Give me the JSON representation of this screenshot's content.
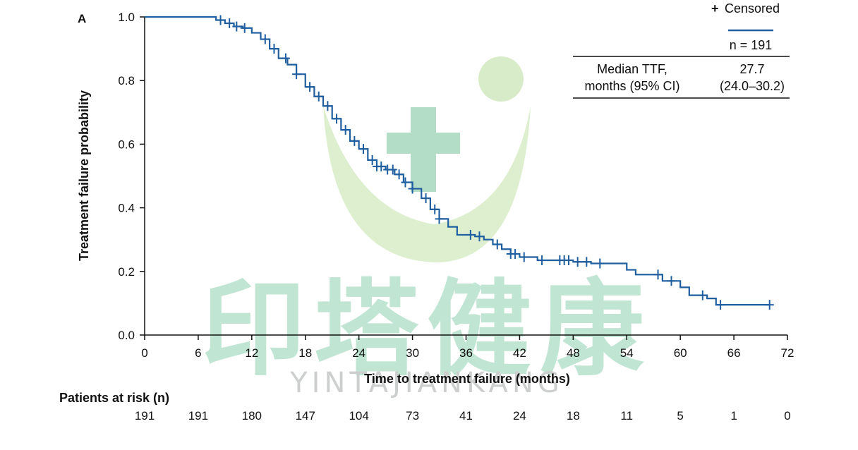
{
  "panel_label": "A",
  "chart_data": {
    "type": "line",
    "step": true,
    "xlabel": "Time to treatment failure (months)",
    "ylabel": "Treatment failure probability",
    "xlim": [
      0,
      72
    ],
    "ylim": [
      0,
      1
    ],
    "x_ticks": [
      0,
      6,
      12,
      18,
      24,
      30,
      36,
      42,
      48,
      54,
      60,
      66,
      72
    ],
    "y_ticks": [
      "0.0",
      "0.2",
      "0.4",
      "0.6",
      "0.8",
      "1.0"
    ],
    "grid": false,
    "colors": {
      "curve": "#1f5fa0",
      "watermark_green": "#b9dc9c",
      "watermark_teal": "#6fbf95"
    },
    "series": [
      {
        "x": [
          0,
          7.5,
          8,
          9,
          10,
          11,
          12,
          13,
          14,
          15,
          16,
          17,
          18,
          19,
          20,
          21,
          22,
          23,
          24,
          25,
          26,
          27,
          28,
          29,
          30,
          31,
          32,
          33,
          34,
          35,
          36,
          37,
          38,
          39,
          40,
          41,
          42,
          44,
          46,
          48,
          50,
          52,
          53,
          54,
          55,
          56,
          58,
          59,
          60,
          61,
          62,
          63,
          64,
          66,
          68,
          70
        ],
        "y": [
          1.0,
          1.0,
          0.99,
          0.98,
          0.97,
          0.965,
          0.95,
          0.93,
          0.9,
          0.87,
          0.85,
          0.82,
          0.78,
          0.75,
          0.72,
          0.68,
          0.645,
          0.61,
          0.585,
          0.55,
          0.53,
          0.52,
          0.505,
          0.48,
          0.46,
          0.43,
          0.395,
          0.365,
          0.34,
          0.315,
          0.315,
          0.31,
          0.3,
          0.285,
          0.27,
          0.255,
          0.245,
          0.235,
          0.235,
          0.23,
          0.225,
          0.225,
          0.225,
          0.205,
          0.19,
          0.19,
          0.17,
          0.17,
          0.15,
          0.125,
          0.125,
          0.115,
          0.095,
          0.095,
          0.095,
          0.095
        ],
        "censored_x": [
          8.5,
          9.5,
          10.3,
          11.2,
          13.5,
          14.5,
          15.8,
          17.0,
          18.5,
          19.5,
          20.5,
          21.5,
          22.5,
          23.5,
          24.5,
          25.5,
          26.0,
          26.5,
          27.2,
          27.8,
          28.5,
          29.2,
          30.0,
          31.5,
          32.5,
          33.0,
          36.5,
          37.5,
          39.5,
          41.0,
          41.5,
          42.5,
          44.5,
          46.5,
          47.0,
          47.5,
          48.5,
          49.5,
          51.0,
          57.5,
          59.0,
          62.5,
          64.5,
          70.0
        ]
      }
    ],
    "legend": {
      "symbol": "+",
      "label": "Censored",
      "n_label": "n = 191",
      "row_label_line1": "Median TTF,",
      "row_label_line2": "months (95% CI)",
      "value_line1": "27.7",
      "value_line2": "(24.0–30.2)",
      "position": "top-right"
    },
    "at_risk": {
      "title": "Patients at risk (n)",
      "values": [
        "191",
        "191",
        "180",
        "147",
        "104",
        "73",
        "41",
        "24",
        "18",
        "11",
        "5",
        "1",
        "0"
      ]
    }
  },
  "watermark": {
    "chinese": "印塔健康",
    "latin": "YINTAJIANKANG"
  }
}
